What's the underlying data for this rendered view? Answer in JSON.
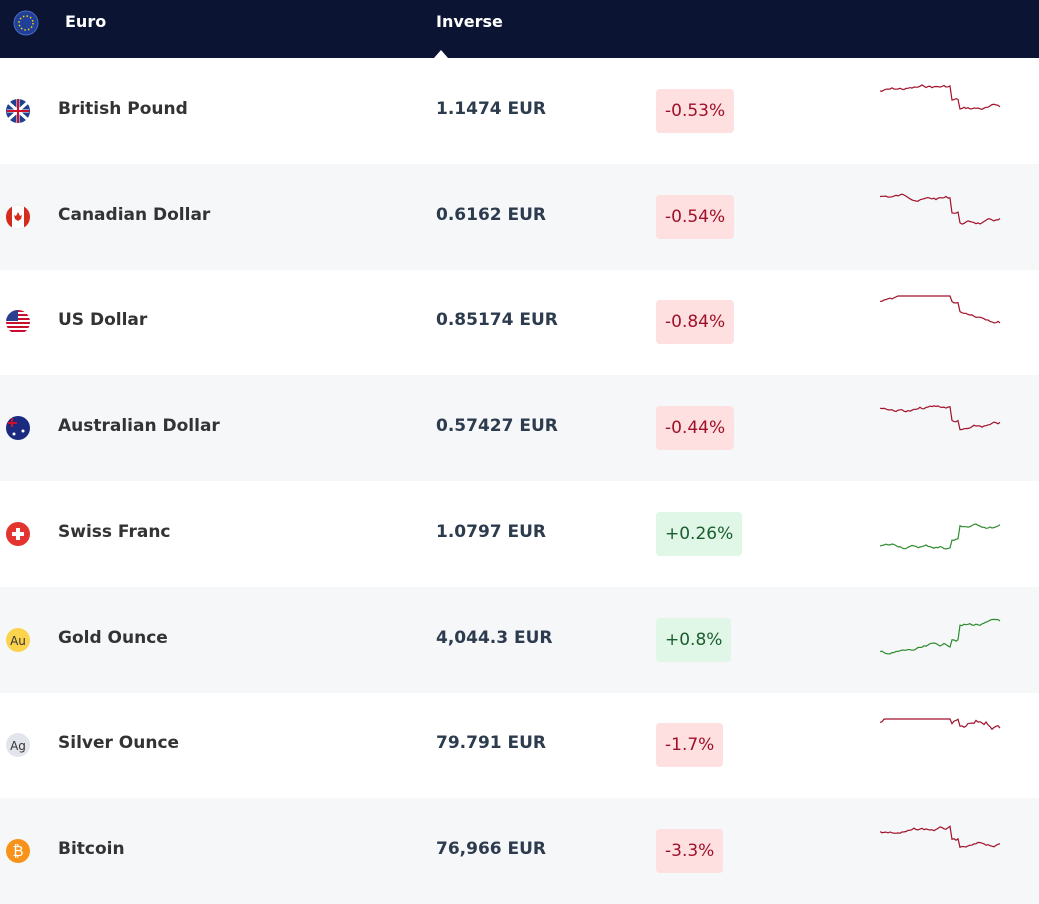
{
  "header": {
    "base": "Euro",
    "column": "Inverse"
  },
  "rows": [
    {
      "name": "British Pound",
      "rate": "1.1474 EUR",
      "change": "-0.53%"
    },
    {
      "name": "Canadian Dollar",
      "rate": "0.6162 EUR",
      "change": "-0.54%"
    },
    {
      "name": "US Dollar",
      "rate": "0.85174 EUR",
      "change": "-0.84%"
    },
    {
      "name": "Australian Dollar",
      "rate": "0.57427 EUR",
      "change": "-0.44%"
    },
    {
      "name": "Swiss Franc",
      "rate": "1.0797 EUR",
      "change": "+0.26%"
    },
    {
      "name": "Gold Ounce",
      "rate": "4,044.3 EUR",
      "change": "+0.8%",
      "icon": "Au"
    },
    {
      "name": "Silver Ounce",
      "rate": "79.791 EUR",
      "change": "-1.7%",
      "icon": "Ag"
    },
    {
      "name": "Bitcoin",
      "rate": "76,966 EUR",
      "change": "-3.3%",
      "icon": "₿"
    }
  ]
}
